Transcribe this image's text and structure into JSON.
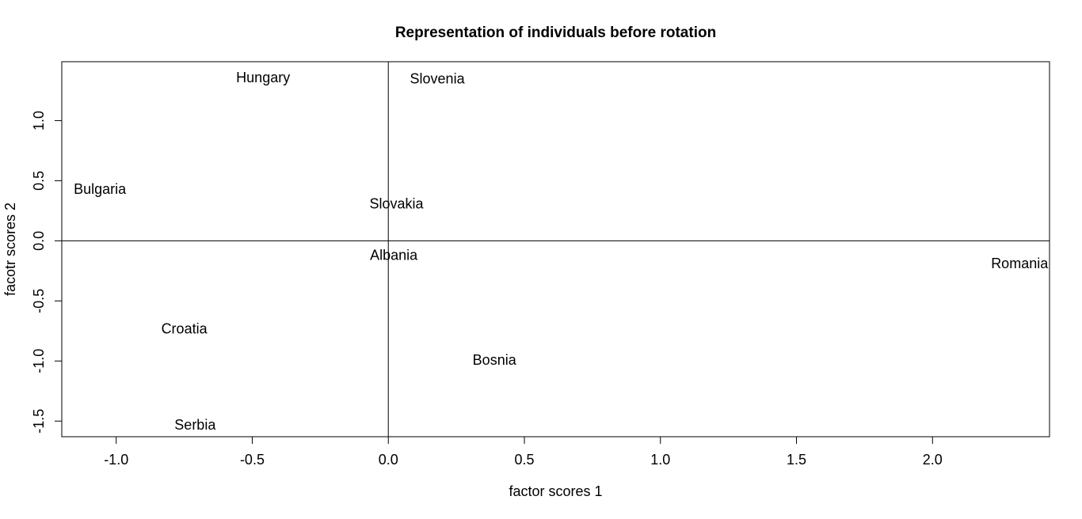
{
  "chart_data": {
    "type": "scatter",
    "title": "Representation of individuals before rotation",
    "xlabel": "factor scores 1",
    "ylabel": "facotr scores 2",
    "xlim": [
      -1.2,
      2.43
    ],
    "ylim": [
      -1.63,
      1.49
    ],
    "xticks": [
      -1.0,
      -0.5,
      0.0,
      0.5,
      1.0,
      1.5,
      2.0
    ],
    "xtick_labels": [
      "-1.0",
      "-0.5",
      "0.0",
      "0.5",
      "1.0",
      "1.5",
      "2.0"
    ],
    "yticks": [
      -1.5,
      -1.0,
      -0.5,
      0.0,
      0.5,
      1.0
    ],
    "ytick_labels": [
      "-1.5",
      "-1.0",
      "-0.5",
      "0.0",
      "0.5",
      "1.0"
    ],
    "reference_lines": {
      "x": 0,
      "y": 0
    },
    "grid": false,
    "legend": "none",
    "points": [
      {
        "label": "Hungary",
        "x": -0.46,
        "y": 1.36
      },
      {
        "label": "Slovenia",
        "x": 0.18,
        "y": 1.35
      },
      {
        "label": "Bulgaria",
        "x": -1.06,
        "y": 0.43
      },
      {
        "label": "Slovakia",
        "x": 0.03,
        "y": 0.31
      },
      {
        "label": "Albania",
        "x": 0.02,
        "y": -0.12
      },
      {
        "label": "Romania",
        "x": 2.32,
        "y": -0.19
      },
      {
        "label": "Croatia",
        "x": -0.75,
        "y": -0.73
      },
      {
        "label": "Bosnia",
        "x": 0.39,
        "y": -0.99
      },
      {
        "label": "Serbia",
        "x": -0.71,
        "y": -1.53
      }
    ]
  }
}
